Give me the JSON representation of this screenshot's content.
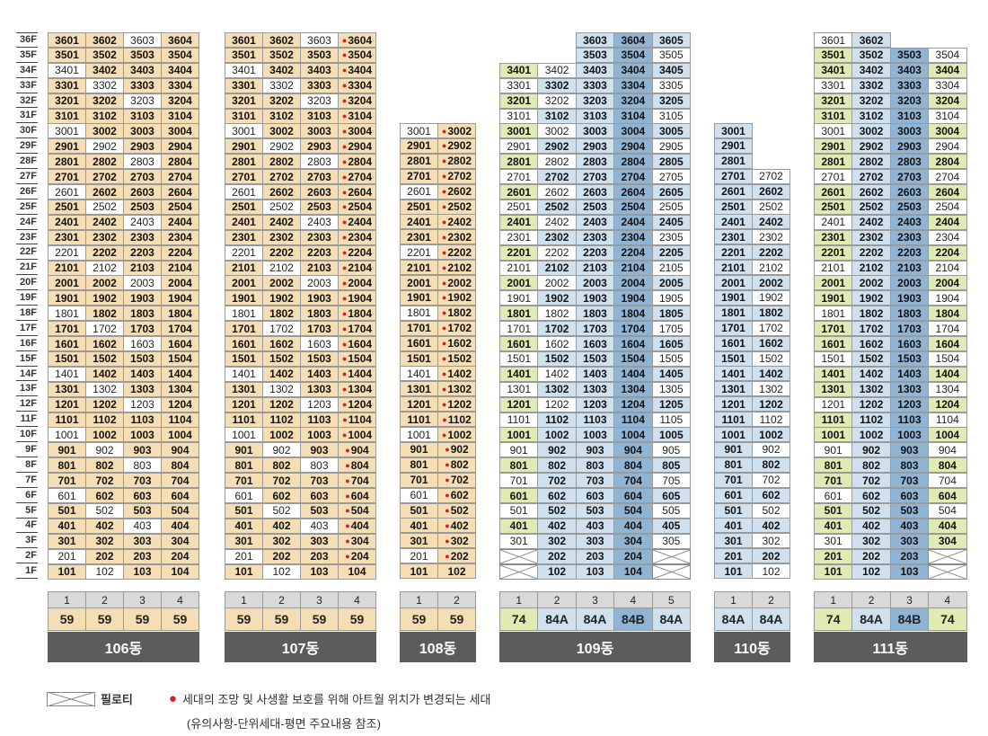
{
  "floors": [
    "36F",
    "35F",
    "34F",
    "33F",
    "32F",
    "31F",
    "30F",
    "29F",
    "28F",
    "27F",
    "26F",
    "25F",
    "24F",
    "23F",
    "22F",
    "21F",
    "20F",
    "19F",
    "18F",
    "17F",
    "16F",
    "15F",
    "14F",
    "13F",
    "12F",
    "11F",
    "10F",
    "9F",
    "8F",
    "7F",
    "6F",
    "5F",
    "4F",
    "3F",
    "2F",
    "1F"
  ],
  "colors": {
    "t59": "#f5deb3",
    "t74": "#e0ebb4",
    "t84a": "#cfe0ee",
    "t84b": "#90b4d3",
    "white": "#ffffff",
    "dot": "#d31f1f"
  },
  "legend": {
    "piloti_label": "필로티",
    "dot_text": "세대의 조망 및 사생활 보호를 위해 아트월 위치가 변경되는 세대",
    "note": "(유의사항-단위세대-평면 주요내용 참조)"
  },
  "buildings": [
    {
      "name": "106동",
      "top": 36,
      "lines": [
        "1",
        "2",
        "3",
        "4"
      ],
      "types": [
        "59",
        "59",
        "59",
        "59"
      ],
      "tcls": [
        "t59",
        "t59",
        "t59",
        "t59"
      ],
      "rows": [
        [
          "3601",
          "3602",
          "3603",
          "3604"
        ],
        [
          "3501",
          "3502",
          "3503",
          "3504"
        ],
        [
          "3401",
          "3402",
          "3403",
          "3404"
        ],
        [
          "3301",
          "3302",
          "3303",
          "3304"
        ],
        [
          "3201",
          "3202",
          "3203",
          "3204"
        ],
        [
          "3101",
          "3102",
          "3103",
          "3104"
        ],
        [
          "3001",
          "3002",
          "3003",
          "3004"
        ],
        [
          "2901",
          "2902",
          "2903",
          "2904"
        ],
        [
          "2801",
          "2802",
          "2803",
          "2804"
        ],
        [
          "2701",
          "2702",
          "2703",
          "2704"
        ],
        [
          "2601",
          "2602",
          "2603",
          "2604"
        ],
        [
          "2501",
          "2502",
          "2503",
          "2504"
        ],
        [
          "2401",
          "2402",
          "2403",
          "2404"
        ],
        [
          "2301",
          "2302",
          "2303",
          "2304"
        ],
        [
          "2201",
          "2202",
          "2203",
          "2204"
        ],
        [
          "2101",
          "2102",
          "2103",
          "2104"
        ],
        [
          "2001",
          "2002",
          "2003",
          "2004"
        ],
        [
          "1901",
          "1902",
          "1903",
          "1904"
        ],
        [
          "1801",
          "1802",
          "1803",
          "1804"
        ],
        [
          "1701",
          "1702",
          "1703",
          "1704"
        ],
        [
          "1601",
          "1602",
          "1603",
          "1604"
        ],
        [
          "1501",
          "1502",
          "1503",
          "1504"
        ],
        [
          "1401",
          "1402",
          "1403",
          "1404"
        ],
        [
          "1301",
          "1302",
          "1303",
          "1304"
        ],
        [
          "1201",
          "1202",
          "1203",
          "1204"
        ],
        [
          "1101",
          "1102",
          "1103",
          "1104"
        ],
        [
          "1001",
          "1002",
          "1003",
          "1004"
        ],
        [
          "901",
          "902",
          "903",
          "904"
        ],
        [
          "801",
          "802",
          "803",
          "804"
        ],
        [
          "701",
          "702",
          "703",
          "704"
        ],
        [
          "601",
          "602",
          "603",
          "604"
        ],
        [
          "501",
          "502",
          "503",
          "504"
        ],
        [
          "401",
          "402",
          "403",
          "404"
        ],
        [
          "301",
          "302",
          "303",
          "304"
        ],
        [
          "201",
          "202",
          "203",
          "204"
        ],
        [
          "101",
          "102",
          "103",
          "104"
        ]
      ]
    },
    {
      "name": "107동",
      "top": 36,
      "lines": [
        "1",
        "2",
        "3",
        "4"
      ],
      "types": [
        "59",
        "59",
        "59",
        "59"
      ],
      "tcls": [
        "t59",
        "t59",
        "t59",
        "t59"
      ],
      "dotcol": 3,
      "rows": [
        [
          "3601",
          "3602",
          "3603",
          "3604"
        ],
        [
          "3501",
          "3502",
          "3503",
          "3504"
        ],
        [
          "3401",
          "3402",
          "3403",
          "3404"
        ],
        [
          "3301",
          "3302",
          "3303",
          "3304"
        ],
        [
          "3201",
          "3202",
          "3203",
          "3204"
        ],
        [
          "3101",
          "3102",
          "3103",
          "3104"
        ],
        [
          "3001",
          "3002",
          "3003",
          "3004"
        ],
        [
          "2901",
          "2902",
          "2903",
          "2904"
        ],
        [
          "2801",
          "2802",
          "2803",
          "2804"
        ],
        [
          "2701",
          "2702",
          "2703",
          "2704"
        ],
        [
          "2601",
          "2602",
          "2603",
          "2604"
        ],
        [
          "2501",
          "2502",
          "2503",
          "2504"
        ],
        [
          "2401",
          "2402",
          "2403",
          "2404"
        ],
        [
          "2301",
          "2302",
          "2303",
          "2304"
        ],
        [
          "2201",
          "2202",
          "2203",
          "2204"
        ],
        [
          "2101",
          "2102",
          "2103",
          "2104"
        ],
        [
          "2001",
          "2002",
          "2003",
          "2004"
        ],
        [
          "1901",
          "1902",
          "1903",
          "1904"
        ],
        [
          "1801",
          "1802",
          "1803",
          "1804"
        ],
        [
          "1701",
          "1702",
          "1703",
          "1704"
        ],
        [
          "1601",
          "1602",
          "1603",
          "1604"
        ],
        [
          "1501",
          "1502",
          "1503",
          "1504"
        ],
        [
          "1401",
          "1402",
          "1403",
          "1404"
        ],
        [
          "1301",
          "1302",
          "1303",
          "1304"
        ],
        [
          "1201",
          "1202",
          "1203",
          "1204"
        ],
        [
          "1101",
          "1102",
          "1103",
          "1104"
        ],
        [
          "1001",
          "1002",
          "1003",
          "1004"
        ],
        [
          "901",
          "902",
          "903",
          "904"
        ],
        [
          "801",
          "802",
          "803",
          "804"
        ],
        [
          "701",
          "702",
          "703",
          "704"
        ],
        [
          "601",
          "602",
          "603",
          "604"
        ],
        [
          "501",
          "502",
          "503",
          "504"
        ],
        [
          "401",
          "402",
          "403",
          "404"
        ],
        [
          "301",
          "302",
          "303",
          "304"
        ],
        [
          "201",
          "202",
          "203",
          "204"
        ],
        [
          "101",
          "102",
          "103",
          "104"
        ]
      ]
    },
    {
      "name": "108동",
      "top": 137,
      "lines": [
        "1",
        "2"
      ],
      "types": [
        "59",
        "59"
      ],
      "tcls": [
        "t59",
        "t59"
      ],
      "dotcol": 1,
      "rows": [
        [
          "3001",
          "3002"
        ],
        [
          "2901",
          "2902"
        ],
        [
          "2801",
          "2802"
        ],
        [
          "2701",
          "2702"
        ],
        [
          "2601",
          "2602"
        ],
        [
          "2501",
          "2502"
        ],
        [
          "2401",
          "2402"
        ],
        [
          "2301",
          "2302"
        ],
        [
          "2201",
          "2202"
        ],
        [
          "2101",
          "2102"
        ],
        [
          "2001",
          "2002"
        ],
        [
          "1901",
          "1902"
        ],
        [
          "1801",
          "1802"
        ],
        [
          "1701",
          "1702"
        ],
        [
          "1601",
          "1602"
        ],
        [
          "1501",
          "1502"
        ],
        [
          "1401",
          "1402"
        ],
        [
          "1301",
          "1302"
        ],
        [
          "1201",
          "1202"
        ],
        [
          "1101",
          "1102"
        ],
        [
          "1001",
          "1002"
        ],
        [
          "901",
          "902"
        ],
        [
          "801",
          "802"
        ],
        [
          "701",
          "702"
        ],
        [
          "601",
          "602"
        ],
        [
          "501",
          "502"
        ],
        [
          "401",
          "402"
        ],
        [
          "301",
          "302"
        ],
        [
          "201",
          "202"
        ],
        [
          "101",
          "102"
        ]
      ]
    },
    {
      "name": "109동",
      "top": 36,
      "lines": [
        "1",
        "2",
        "3",
        "4",
        "5"
      ],
      "types": [
        "74",
        "84A",
        "84A",
        "84B",
        "84A"
      ],
      "tcls": [
        "t74",
        "t84a",
        "t84a",
        "t84b",
        "t84a"
      ],
      "rows": [
        [
          "",
          "",
          "3603",
          "3604",
          "3605"
        ],
        [
          "",
          "",
          "3503",
          "3504",
          "3505"
        ],
        [
          "3401",
          "3402",
          "3403",
          "3404",
          "3405"
        ],
        [
          "3301",
          "3302",
          "3303",
          "3304",
          "3305"
        ],
        [
          "3201",
          "3202",
          "3203",
          "3204",
          "3205"
        ],
        [
          "3101",
          "3102",
          "3103",
          "3104",
          "3105"
        ],
        [
          "3001",
          "3002",
          "3003",
          "3004",
          "3005"
        ],
        [
          "2901",
          "2902",
          "2903",
          "2904",
          "2905"
        ],
        [
          "2801",
          "2802",
          "2803",
          "2804",
          "2805"
        ],
        [
          "2701",
          "2702",
          "2703",
          "2704",
          "2705"
        ],
        [
          "2601",
          "2602",
          "2603",
          "2604",
          "2605"
        ],
        [
          "2501",
          "2502",
          "2503",
          "2504",
          "2505"
        ],
        [
          "2401",
          "2402",
          "2403",
          "2404",
          "2405"
        ],
        [
          "2301",
          "2302",
          "2303",
          "2304",
          "2305"
        ],
        [
          "2201",
          "2202",
          "2203",
          "2204",
          "2205"
        ],
        [
          "2101",
          "2102",
          "2103",
          "2104",
          "2105"
        ],
        [
          "2001",
          "2002",
          "2003",
          "2004",
          "2005"
        ],
        [
          "1901",
          "1902",
          "1903",
          "1904",
          "1905"
        ],
        [
          "1801",
          "1802",
          "1803",
          "1804",
          "1805"
        ],
        [
          "1701",
          "1702",
          "1703",
          "1704",
          "1705"
        ],
        [
          "1601",
          "1602",
          "1603",
          "1604",
          "1605"
        ],
        [
          "1501",
          "1502",
          "1503",
          "1504",
          "1505"
        ],
        [
          "1401",
          "1402",
          "1403",
          "1404",
          "1405"
        ],
        [
          "1301",
          "1302",
          "1303",
          "1304",
          "1305"
        ],
        [
          "1201",
          "1202",
          "1203",
          "1204",
          "1205"
        ],
        [
          "1101",
          "1102",
          "1103",
          "1104",
          "1105"
        ],
        [
          "1001",
          "1002",
          "1003",
          "1004",
          "1005"
        ],
        [
          "901",
          "902",
          "903",
          "904",
          "905"
        ],
        [
          "801",
          "802",
          "803",
          "804",
          "805"
        ],
        [
          "701",
          "702",
          "703",
          "704",
          "705"
        ],
        [
          "601",
          "602",
          "603",
          "604",
          "605"
        ],
        [
          "501",
          "502",
          "503",
          "504",
          "505"
        ],
        [
          "401",
          "402",
          "403",
          "404",
          "405"
        ],
        [
          "301",
          "302",
          "303",
          "304",
          "305"
        ],
        [
          "P",
          "202",
          "203",
          "204",
          "P"
        ],
        [
          "P",
          "102",
          "103",
          "104",
          "P"
        ]
      ]
    },
    {
      "name": "110동",
      "top": 137,
      "lines": [
        "1",
        "2"
      ],
      "types": [
        "84A",
        "84A"
      ],
      "tcls": [
        "t84a",
        "t84a"
      ],
      "rows": [
        [
          "3001",
          ""
        ],
        [
          "2901",
          ""
        ],
        [
          "2801",
          ""
        ],
        [
          "2701",
          "2702"
        ],
        [
          "2601",
          "2602"
        ],
        [
          "2501",
          "2502"
        ],
        [
          "2401",
          "2402"
        ],
        [
          "2301",
          "2302"
        ],
        [
          "2201",
          "2202"
        ],
        [
          "2101",
          "2102"
        ],
        [
          "2001",
          "2002"
        ],
        [
          "1901",
          "1902"
        ],
        [
          "1801",
          "1802"
        ],
        [
          "1701",
          "1702"
        ],
        [
          "1601",
          "1602"
        ],
        [
          "1501",
          "1502"
        ],
        [
          "1401",
          "1402"
        ],
        [
          "1301",
          "1302"
        ],
        [
          "1201",
          "1202"
        ],
        [
          "1101",
          "1102"
        ],
        [
          "1001",
          "1002"
        ],
        [
          "901",
          "902"
        ],
        [
          "801",
          "802"
        ],
        [
          "701",
          "702"
        ],
        [
          "601",
          "602"
        ],
        [
          "501",
          "502"
        ],
        [
          "401",
          "402"
        ],
        [
          "301",
          "302"
        ],
        [
          "201",
          "202"
        ],
        [
          "101",
          "102"
        ]
      ]
    },
    {
      "name": "111동",
      "top": 36,
      "lines": [
        "1",
        "2",
        "3",
        "4"
      ],
      "types": [
        "74",
        "84A",
        "84B",
        "74"
      ],
      "tcls": [
        "t74",
        "t84a",
        "t84b",
        "t74"
      ],
      "rows": [
        [
          "3601",
          "3602",
          "",
          ""
        ],
        [
          "3501",
          "3502",
          "3503",
          "3504"
        ],
        [
          "3401",
          "3402",
          "3403",
          "3404"
        ],
        [
          "3301",
          "3302",
          "3303",
          "3304"
        ],
        [
          "3201",
          "3202",
          "3203",
          "3204"
        ],
        [
          "3101",
          "3102",
          "3103",
          "3104"
        ],
        [
          "3001",
          "3002",
          "3003",
          "3004"
        ],
        [
          "2901",
          "2902",
          "2903",
          "2904"
        ],
        [
          "2801",
          "2802",
          "2803",
          "2804"
        ],
        [
          "2701",
          "2702",
          "2703",
          "2704"
        ],
        [
          "2601",
          "2602",
          "2603",
          "2604"
        ],
        [
          "2501",
          "2502",
          "2503",
          "2504"
        ],
        [
          "2401",
          "2402",
          "2403",
          "2404"
        ],
        [
          "2301",
          "2302",
          "2303",
          "2304"
        ],
        [
          "2201",
          "2202",
          "2203",
          "2204"
        ],
        [
          "2101",
          "2102",
          "2103",
          "2104"
        ],
        [
          "2001",
          "2002",
          "2003",
          "2004"
        ],
        [
          "1901",
          "1902",
          "1903",
          "1904"
        ],
        [
          "1801",
          "1802",
          "1803",
          "1804"
        ],
        [
          "1701",
          "1702",
          "1703",
          "1704"
        ],
        [
          "1601",
          "1602",
          "1603",
          "1604"
        ],
        [
          "1501",
          "1502",
          "1503",
          "1504"
        ],
        [
          "1401",
          "1402",
          "1403",
          "1404"
        ],
        [
          "1301",
          "1302",
          "1303",
          "1304"
        ],
        [
          "1201",
          "1202",
          "1203",
          "1204"
        ],
        [
          "1101",
          "1102",
          "1103",
          "1104"
        ],
        [
          "1001",
          "1002",
          "1003",
          "1004"
        ],
        [
          "901",
          "902",
          "903",
          "904"
        ],
        [
          "801",
          "802",
          "803",
          "804"
        ],
        [
          "701",
          "702",
          "703",
          "704"
        ],
        [
          "601",
          "602",
          "603",
          "604"
        ],
        [
          "501",
          "502",
          "503",
          "504"
        ],
        [
          "401",
          "402",
          "403",
          "404"
        ],
        [
          "301",
          "302",
          "303",
          "304"
        ],
        [
          "201",
          "202",
          "203",
          "P"
        ],
        [
          "101",
          "102",
          "103",
          "P"
        ]
      ]
    }
  ]
}
